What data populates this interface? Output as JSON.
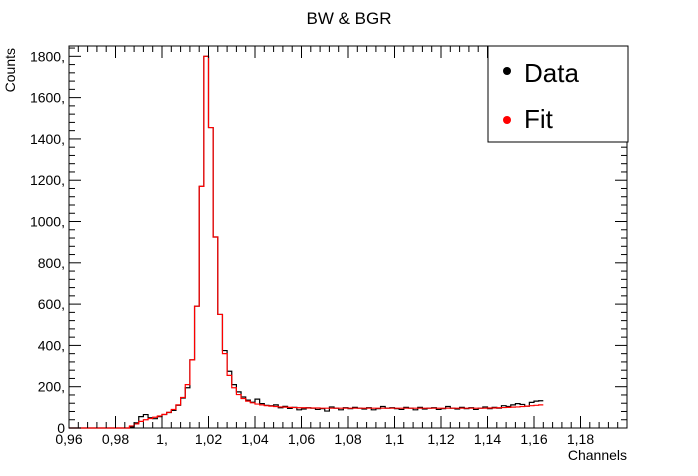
{
  "chart_data": {
    "type": "histogram",
    "title": "BW & BGR",
    "xlabel": "Channels",
    "ylabel": "Counts",
    "xlim": [
      0.96,
      1.2
    ],
    "ylim": [
      0,
      1850
    ],
    "x_ticks": [
      {
        "value": 0.96,
        "label": "0,96"
      },
      {
        "value": 0.98,
        "label": "0,98"
      },
      {
        "value": 1.0,
        "label": "1,"
      },
      {
        "value": 1.02,
        "label": "1,02"
      },
      {
        "value": 1.04,
        "label": "1,04"
      },
      {
        "value": 1.06,
        "label": "1,06"
      },
      {
        "value": 1.08,
        "label": "1,08"
      },
      {
        "value": 1.1,
        "label": "1,1"
      },
      {
        "value": 1.12,
        "label": "1,12"
      },
      {
        "value": 1.14,
        "label": "1,14"
      },
      {
        "value": 1.16,
        "label": "1,16"
      },
      {
        "value": 1.18,
        "label": "1,18"
      }
    ],
    "y_ticks": [
      {
        "value": 0,
        "label": "0"
      },
      {
        "value": 200,
        "label": "200,"
      },
      {
        "value": 400,
        "label": "400,"
      },
      {
        "value": 600,
        "label": "600,"
      },
      {
        "value": 800,
        "label": "800,"
      },
      {
        "value": 1000,
        "label": "1000,"
      },
      {
        "value": 1200,
        "label": "1200,"
      },
      {
        "value": 1400,
        "label": "1400,"
      },
      {
        "value": 1600,
        "label": "1600,"
      },
      {
        "value": 1800,
        "label": "1800,"
      }
    ],
    "bin_edges_start": 0.96,
    "bin_width": 0.002,
    "series": [
      {
        "name": "Data",
        "color": "#000000",
        "values": [
          0,
          0,
          0,
          0,
          0,
          0,
          0,
          0,
          0,
          0,
          0,
          0,
          0,
          5,
          25,
          55,
          65,
          50,
          45,
          55,
          65,
          75,
          85,
          110,
          145,
          195,
          330,
          590,
          1170,
          1800,
          1455,
          925,
          550,
          375,
          275,
          210,
          175,
          150,
          135,
          125,
          140,
          118,
          110,
          108,
          112,
          98,
          105,
          95,
          100,
          88,
          92,
          98,
          96,
          90,
          94,
          82,
          102,
          96,
          88,
          98,
          94,
          100,
          96,
          92,
          98,
          88,
          94,
          104,
          96,
          98,
          94,
          90,
          100,
          96,
          88,
          100,
          92,
          96,
          98,
          90,
          94,
          104,
          96,
          92,
          100,
          94,
          98,
          90,
          96,
          102,
          94,
          100,
          96,
          108,
          104,
          112,
          118,
          114,
          106,
          124,
          130,
          132
        ]
      },
      {
        "name": "Fit",
        "color": "#ff0000",
        "values": [
          0,
          0,
          0,
          0,
          0,
          0,
          0,
          0,
          0,
          0,
          0,
          0,
          0,
          10,
          20,
          32,
          40,
          46,
          52,
          58,
          66,
          76,
          90,
          112,
          148,
          210,
          330,
          590,
          1170,
          1800,
          1455,
          925,
          550,
          360,
          255,
          195,
          162,
          143,
          130,
          122,
          116,
          112,
          108,
          106,
          104,
          102,
          101,
          100,
          99,
          98,
          98,
          97,
          97,
          97,
          96,
          96,
          96,
          96,
          96,
          96,
          96,
          96,
          96,
          96,
          96,
          96,
          96,
          96,
          96,
          96,
          96,
          96,
          96,
          96,
          96,
          96,
          96,
          96,
          96,
          96,
          96,
          96,
          96,
          96,
          96,
          96,
          96,
          96,
          96,
          96,
          97,
          97,
          98,
          99,
          100,
          101,
          102,
          104,
          106,
          108,
          110,
          112
        ]
      }
    ],
    "legend": {
      "position": "top-right",
      "entries": [
        {
          "label": "Data",
          "color": "#000000"
        },
        {
          "label": "Fit",
          "color": "#ff0000"
        }
      ]
    },
    "grid": false
  }
}
